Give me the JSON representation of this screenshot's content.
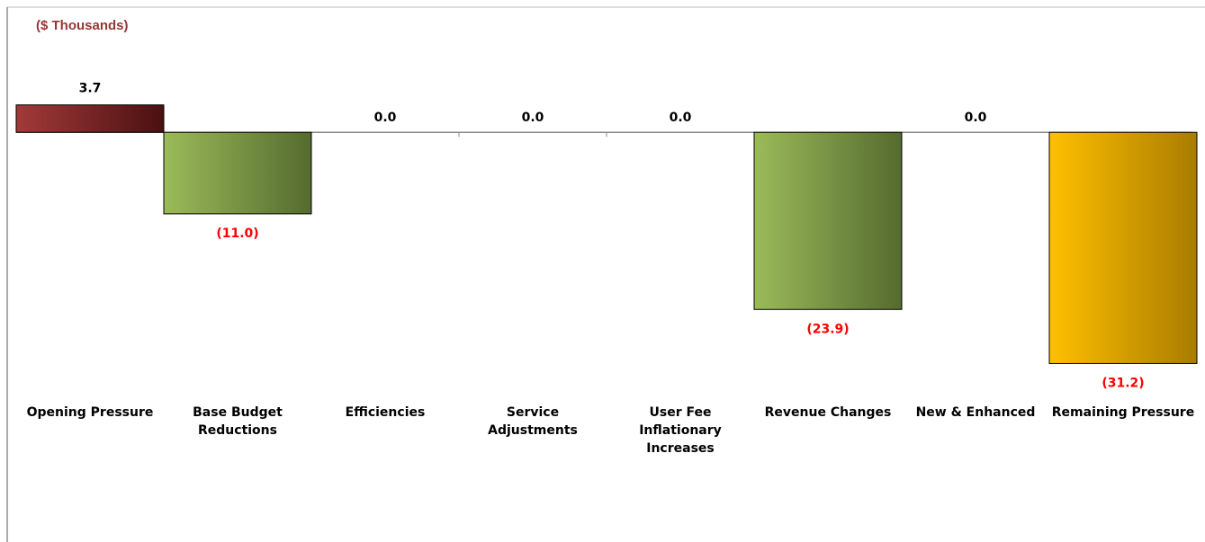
{
  "chart_data": {
    "type": "bar",
    "subtitle": "($ Thousands)",
    "categories": [
      "Opening Pressure",
      "Base Budget Reductions",
      "Efficiencies",
      "Service Adjustments",
      "User Fee Inflationary Increases",
      "Revenue Changes",
      "New & Enhanced",
      "Remaining Pressure"
    ],
    "values": [
      3.7,
      -11.0,
      0.0,
      0.0,
      0.0,
      -23.9,
      0.0,
      -31.2
    ],
    "value_labels": [
      "3.7",
      "(11.0)",
      "0.0",
      "0.0",
      "0.0",
      "(23.9)",
      "0.0",
      "(31.2)"
    ],
    "colors": [
      "#9b2d2d",
      "#9bbb59",
      null,
      null,
      null,
      "#9bbb59",
      null,
      "#ffc000"
    ],
    "ylim": [
      -40,
      5
    ]
  }
}
